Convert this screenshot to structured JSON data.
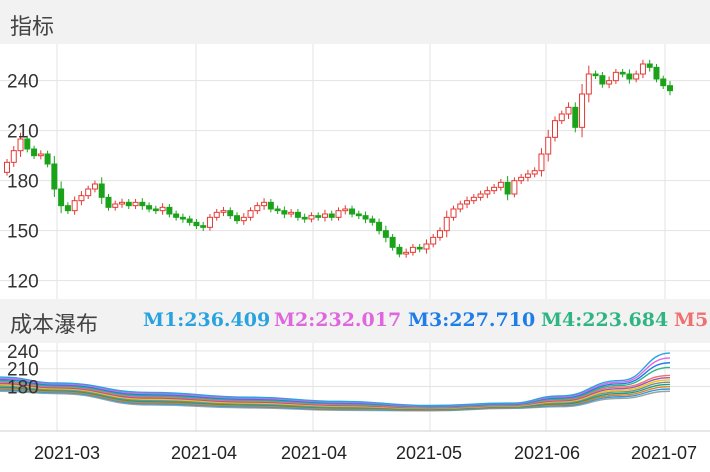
{
  "panel": {
    "indicator_title": "指标",
    "cost_title": "成本瀑布"
  },
  "legend": [
    {
      "label": "M1:236.409",
      "color": "#29a3e0"
    },
    {
      "label": "M2:232.017",
      "color": "#e066e0"
    },
    {
      "label": "M3:227.710",
      "color": "#1e7ee8"
    },
    {
      "label": "M4:223.684",
      "color": "#2fb583"
    },
    {
      "label": "M5",
      "color": "#f07070"
    }
  ],
  "colors": {
    "up": "#e53935",
    "down": "#1aa31a",
    "grid": "#e3e3e3"
  },
  "chart_data": [
    {
      "type": "candlestick",
      "title": "指标",
      "y_ticks": [
        "240",
        "210",
        "180",
        "150",
        "120"
      ],
      "tick_values": [
        240,
        210,
        180,
        150,
        120
      ],
      "ylim": [
        109,
        262
      ],
      "x_labels": [
        "2021-03",
        "2021-04",
        "2021-04",
        "2021-05",
        "2021-06",
        "2021-07"
      ],
      "closes": [
        191,
        198,
        205,
        199,
        195,
        196,
        190,
        175,
        165,
        162,
        168,
        171,
        175,
        178,
        170,
        164,
        166,
        167,
        165,
        167,
        165,
        163,
        162,
        164,
        160,
        158,
        157,
        155,
        153,
        152,
        158,
        161,
        162,
        159,
        156,
        158,
        162,
        165,
        167,
        163,
        162,
        160,
        161,
        158,
        157,
        159,
        158,
        160,
        158,
        162,
        163,
        160,
        159,
        157,
        155,
        150,
        146,
        140,
        136,
        137,
        140,
        139,
        142,
        146,
        150,
        158,
        163,
        166,
        168,
        170,
        172,
        174,
        176,
        179,
        172,
        180,
        182,
        184,
        186,
        196,
        206,
        216,
        220,
        224,
        212,
        232,
        244,
        243,
        238,
        240,
        245,
        244,
        241,
        244,
        250,
        248,
        241,
        237,
        234
      ]
    },
    {
      "type": "line",
      "title": "成本瀑布",
      "y_ticks": [
        "240",
        "210",
        "180"
      ],
      "tick_values": [
        240,
        210,
        180
      ],
      "ylim": [
        105,
        250
      ],
      "series": [
        {
          "name": "M1",
          "end_value": 236.409
        },
        {
          "name": "M2",
          "end_value": 232.017
        },
        {
          "name": "M3",
          "end_value": 227.71
        },
        {
          "name": "M4",
          "end_value": 223.684
        }
      ]
    }
  ]
}
